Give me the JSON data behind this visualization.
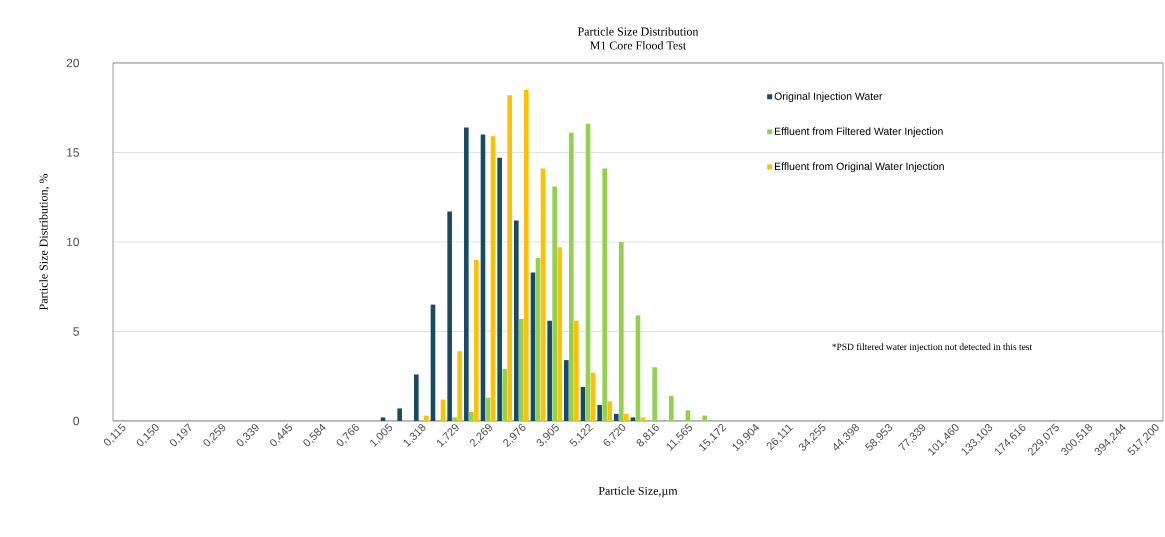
{
  "chart_data": {
    "type": "bar",
    "title": "Particle Size Distribution",
    "subtitle": "M1 Core Flood Test",
    "xlabel": "Particle Size,µm",
    "ylabel": "Particle Size Distribution, %",
    "categories": [
      "0,115",
      null,
      "0,150",
      null,
      "0,197",
      null,
      "0,259",
      null,
      "0,339",
      null,
      "0,445",
      null,
      "0,584",
      null,
      "0,766",
      null,
      "1,005",
      null,
      "1,318",
      null,
      "1,729",
      null,
      "2,269",
      null,
      "2,976",
      null,
      "3,905",
      null,
      "5,122",
      null,
      "6,720",
      null,
      "8,816",
      null,
      "11,565",
      null,
      "15,172",
      null,
      "19,904",
      null,
      "26,111",
      null,
      "34,255",
      null,
      "44,398",
      null,
      "58,953",
      null,
      "77,339",
      null,
      "101,460",
      null,
      "133,103",
      null,
      "174,616",
      null,
      "229,075",
      null,
      "300,518",
      null,
      "394,244",
      null,
      "517,200"
    ],
    "series": [
      {
        "name": "Original Injection Water",
        "color": "#174a64",
        "values": [
          null,
          null,
          null,
          null,
          null,
          null,
          null,
          null,
          null,
          null,
          null,
          null,
          null,
          null,
          null,
          null,
          0.2,
          0.7,
          2.6,
          6.5,
          11.7,
          16.4,
          16.0,
          14.7,
          11.2,
          8.3,
          5.6,
          3.4,
          1.9,
          0.9,
          0.4,
          0.2,
          null,
          null,
          null,
          null,
          null,
          null,
          null,
          null,
          null,
          null,
          null,
          null,
          null,
          null,
          null,
          null,
          null,
          null,
          null,
          null,
          null,
          null,
          null,
          null,
          null,
          null,
          null,
          null,
          null,
          null,
          null
        ]
      },
      {
        "name": "Effluent from Filtered Water Injection",
        "color": "#92d050",
        "values": [
          null,
          null,
          null,
          null,
          null,
          null,
          null,
          null,
          null,
          null,
          null,
          null,
          null,
          null,
          null,
          null,
          null,
          null,
          null,
          null,
          0.2,
          0.5,
          1.3,
          2.9,
          5.7,
          9.1,
          13.1,
          16.1,
          16.6,
          14.1,
          10.0,
          5.9,
          3.0,
          1.4,
          0.6,
          0.3,
          null,
          null,
          null,
          null,
          null,
          null,
          null,
          null,
          null,
          null,
          null,
          null,
          null,
          null,
          null,
          null,
          null,
          null,
          null,
          null,
          null,
          null,
          null,
          null,
          null,
          null,
          null
        ]
      },
      {
        "name": "Effluent from Original Water Injection",
        "color": "#ffc000",
        "values": [
          null,
          null,
          null,
          null,
          null,
          null,
          null,
          null,
          null,
          null,
          null,
          null,
          null,
          null,
          null,
          null,
          null,
          null,
          0.3,
          1.2,
          3.9,
          9.0,
          15.9,
          18.2,
          18.5,
          14.1,
          9.7,
          5.6,
          2.7,
          1.1,
          0.4,
          0.2,
          null,
          null,
          null,
          null,
          null,
          null,
          null,
          null,
          null,
          null,
          null,
          null,
          null,
          null,
          null,
          null,
          null,
          null,
          null,
          null,
          null,
          null,
          null,
          null,
          null,
          null,
          null,
          null,
          null,
          null,
          null
        ]
      }
    ],
    "ylim": [
      0,
      20
    ],
    "yticks": [
      0,
      5,
      10,
      15,
      20
    ],
    "grid": "y",
    "legend": "top right",
    "annotations": [
      "*PSD filtered water injection not detected in this test"
    ]
  }
}
